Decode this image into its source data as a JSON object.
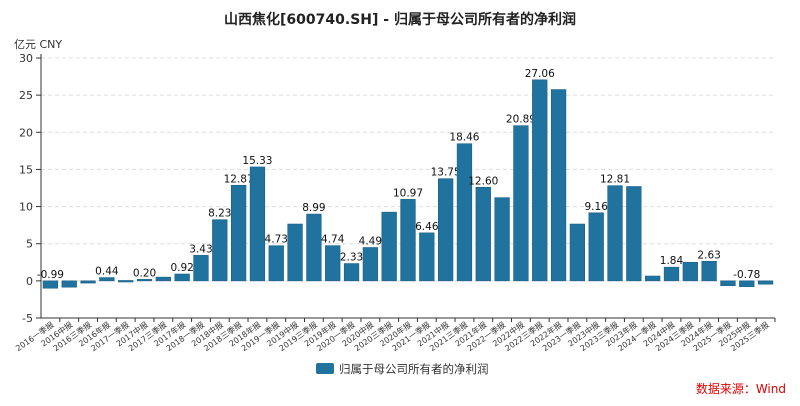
{
  "chart_data": {
    "type": "bar",
    "title": "山西焦化[600740.SH] - 归属于母公司所有者的净利润",
    "ylabel": "亿元  CNY",
    "ylim": [
      -5,
      30
    ],
    "yticks": [
      -5,
      0,
      5,
      10,
      15,
      20,
      25,
      30
    ],
    "grid": true,
    "legend_position": "bottom",
    "color": "#21739f",
    "source": "数据来源：Wind",
    "categories": [
      "2016一季报",
      "2016中报",
      "2016三季报",
      "2016年报",
      "2017一季报",
      "2017中报",
      "2017三季报",
      "2017年报",
      "2018一季报",
      "2018中报",
      "2018三季报",
      "2018年报",
      "2019一季报",
      "2019中报",
      "2019三季报",
      "2019年报",
      "2020一季报",
      "2020中报",
      "2020三季报",
      "2020年报",
      "2021一季报",
      "2021中报",
      "2021三季报",
      "2021年报",
      "2022一季报",
      "2022中报",
      "2022三季报",
      "2022年报",
      "2023一季报",
      "2023中报",
      "2023三季报",
      "2023年报",
      "2024一季报",
      "2024中报",
      "2024三季报",
      "2024年报",
      "2025一季报",
      "2025中报",
      "2025三季报"
    ],
    "series": [
      {
        "name": "归属于母公司所有者的净利润",
        "values": [
          -0.99,
          -0.85,
          -0.3,
          0.44,
          0.05,
          0.2,
          0.5,
          0.92,
          3.43,
          8.23,
          12.87,
          15.33,
          4.73,
          7.65,
          8.99,
          4.74,
          2.33,
          4.49,
          9.25,
          10.97,
          6.46,
          13.75,
          18.46,
          12.6,
          11.2,
          20.89,
          27.06,
          25.75,
          7.65,
          9.16,
          12.81,
          12.7,
          0.65,
          1.84,
          2.5,
          2.63,
          -0.65,
          -0.78,
          -0.45
        ],
        "labels": [
          "-0.99",
          "",
          "",
          "0.44",
          "",
          "0.20",
          "",
          "0.92",
          "3.43",
          "8.23",
          "12.87",
          "15.33",
          "4.73",
          "",
          "8.99",
          "4.74",
          "2.33",
          "4.49",
          "",
          "10.97",
          "6.46",
          "13.75",
          "18.46",
          "12.60",
          "",
          "20.89",
          "27.06",
          "",
          "",
          "9.16",
          "12.81",
          "",
          "",
          "1.84",
          "",
          "2.63",
          "",
          "-0.78",
          ""
        ]
      }
    ]
  }
}
